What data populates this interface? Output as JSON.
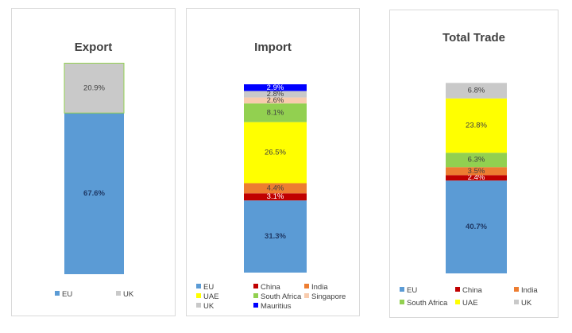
{
  "colors": {
    "EU": "#5b9bd5",
    "UK": "#c9c9c9",
    "China": "#c00000",
    "India": "#ed7d31",
    "UAE": "#ffff00",
    "South Africa": "#92d050",
    "Singapore": "#f8cbad",
    "Mauritius": "#0000ff"
  },
  "chart_data": [
    {
      "type": "bar",
      "stacked": true,
      "title": "Export",
      "categories": [
        "Export"
      ],
      "series": [
        {
          "name": "EU",
          "values": [
            67.6
          ],
          "label": "67.6%"
        },
        {
          "name": "UK",
          "values": [
            20.9
          ],
          "label": "20.9%"
        }
      ],
      "ylim": [
        0,
        100
      ],
      "legend": [
        "EU",
        "UK"
      ],
      "legend_position": "bottom"
    },
    {
      "type": "bar",
      "stacked": true,
      "title": "Import",
      "categories": [
        "Import"
      ],
      "series": [
        {
          "name": "EU",
          "values": [
            31.3
          ],
          "label": "31.3%"
        },
        {
          "name": "China",
          "values": [
            3.1
          ],
          "label": "3.1%"
        },
        {
          "name": "India",
          "values": [
            4.4
          ],
          "label": "4.4%"
        },
        {
          "name": "UAE",
          "values": [
            26.5
          ],
          "label": "26.5%"
        },
        {
          "name": "South Africa",
          "values": [
            8.1
          ],
          "label": "8.1%"
        },
        {
          "name": "Singapore",
          "values": [
            2.6
          ],
          "label": "2.6%"
        },
        {
          "name": "UK",
          "values": [
            2.8
          ],
          "label": "2.8%"
        },
        {
          "name": "Mauritius",
          "values": [
            2.9
          ],
          "label": "2.9%"
        }
      ],
      "ylim": [
        0,
        100
      ],
      "legend": [
        "EU",
        "China",
        "India",
        "UAE",
        "South Africa",
        "Singapore",
        "UK",
        "Mauritius"
      ],
      "legend_position": "bottom"
    },
    {
      "type": "bar",
      "stacked": true,
      "title": "Total Trade",
      "categories": [
        "Total Trade"
      ],
      "series": [
        {
          "name": "EU",
          "values": [
            40.7
          ],
          "label": "40.7%"
        },
        {
          "name": "China",
          "values": [
            2.4
          ],
          "label": "2.4%"
        },
        {
          "name": "India",
          "values": [
            3.5
          ],
          "label": "3.5%"
        },
        {
          "name": "South Africa",
          "values": [
            6.3
          ],
          "label": "6.3%"
        },
        {
          "name": "UAE",
          "values": [
            23.8
          ],
          "label": "23.8%"
        },
        {
          "name": "UK",
          "values": [
            6.8
          ],
          "label": "6.8%"
        }
      ],
      "ylim": [
        0,
        100
      ],
      "legend": [
        "EU",
        "China",
        "India",
        "South Africa",
        "UAE",
        "UK"
      ],
      "legend_position": "bottom"
    }
  ]
}
